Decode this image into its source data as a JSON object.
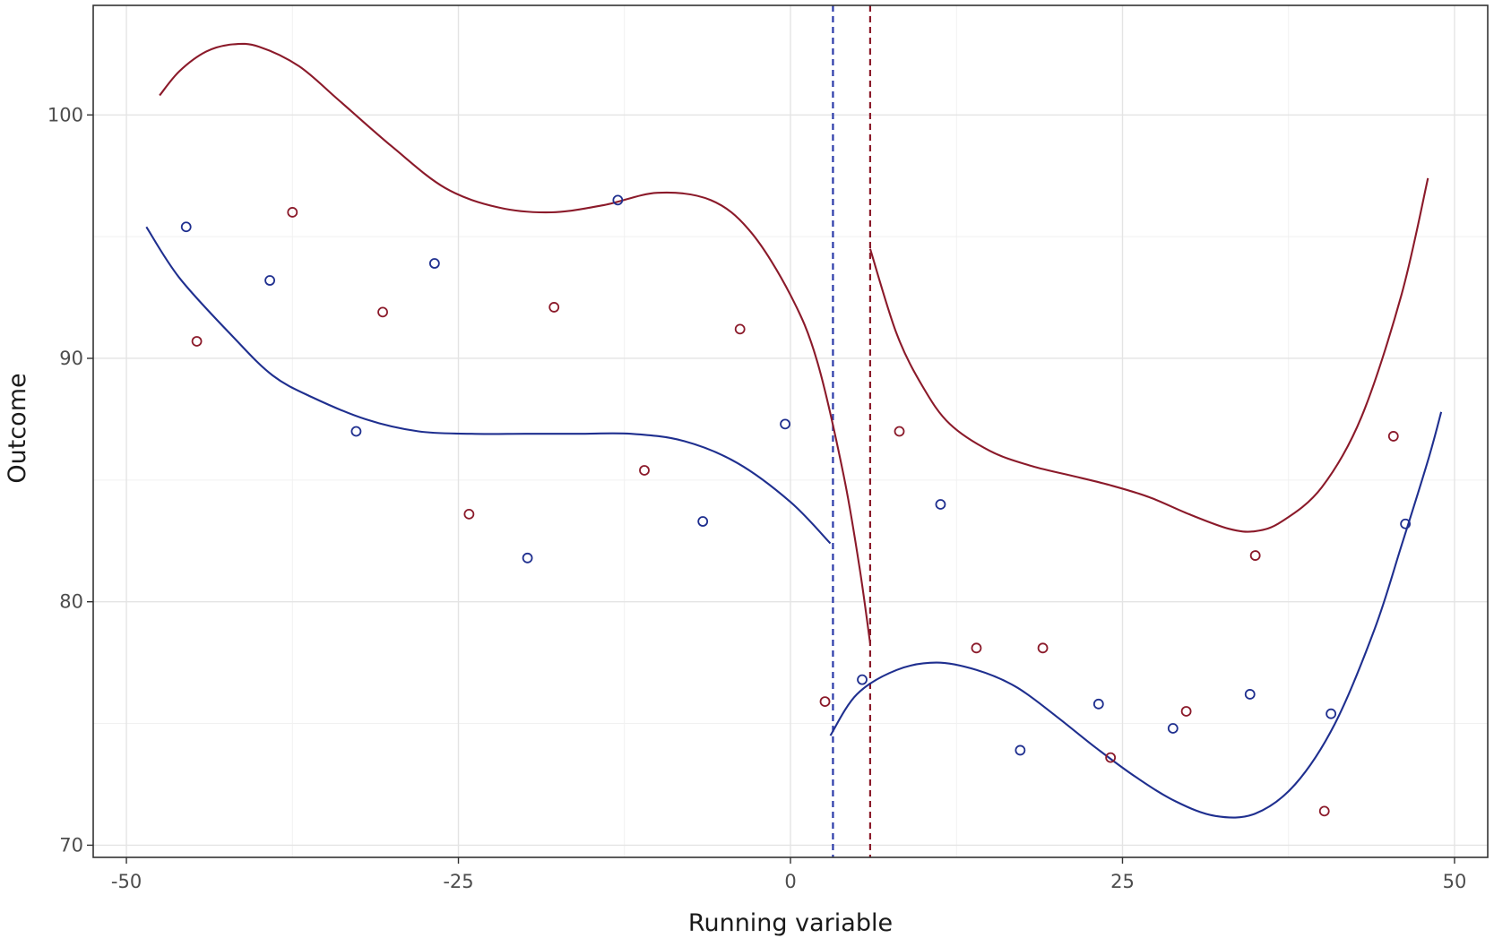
{
  "chart_data": {
    "type": "scatter",
    "xlabel": "Running variable",
    "ylabel": "Outcome",
    "xlim": [
      -52.5,
      52.5
    ],
    "ylim": [
      69.5,
      104.5
    ],
    "x_ticks": [
      -50,
      -25,
      0,
      25,
      50
    ],
    "x_tick_labels": [
      "-50",
      "-25",
      "0",
      "25",
      "50"
    ],
    "y_ticks": [
      70,
      80,
      90,
      100
    ],
    "y_tick_labels": [
      "70",
      "80",
      "90",
      "100"
    ],
    "grid": true,
    "legend": "none",
    "colors": {
      "blue": "#1f2f8f",
      "red": "#8b1a2a"
    },
    "cutoffs": [
      {
        "x": 3.2,
        "color": "#2b3aa8",
        "style": "dashed"
      },
      {
        "x": 6.0,
        "color": "#8b1a2a",
        "style": "dashed"
      }
    ],
    "series": [
      {
        "color": "#1f2f8f",
        "points": [
          [
            -45.5,
            95.4
          ],
          [
            -39.2,
            93.2
          ],
          [
            -32.7,
            87.0
          ],
          [
            -26.8,
            93.9
          ],
          [
            -19.8,
            81.8
          ],
          [
            -13.0,
            96.5
          ],
          [
            -6.6,
            83.3
          ],
          [
            -0.4,
            87.3
          ],
          [
            5.4,
            76.8
          ],
          [
            11.3,
            84.0
          ],
          [
            17.3,
            73.9
          ],
          [
            23.2,
            75.8
          ],
          [
            28.8,
            74.8
          ],
          [
            34.6,
            76.2
          ],
          [
            40.7,
            75.4
          ],
          [
            46.3,
            83.2
          ]
        ],
        "fit_left": [
          [
            -48.5,
            95.4
          ],
          [
            -46,
            93.3
          ],
          [
            -42,
            90.9
          ],
          [
            -39,
            89.3
          ],
          [
            -36,
            88.4
          ],
          [
            -32,
            87.5
          ],
          [
            -28,
            87.0
          ],
          [
            -24,
            86.9
          ],
          [
            -20,
            86.9
          ],
          [
            -16,
            86.9
          ],
          [
            -12,
            86.9
          ],
          [
            -8,
            86.6
          ],
          [
            -4,
            85.7
          ],
          [
            0,
            84.1
          ],
          [
            3,
            82.4
          ]
        ],
        "fit_right": [
          [
            3,
            74.5
          ],
          [
            5,
            76.2
          ],
          [
            8,
            77.2
          ],
          [
            11,
            77.5
          ],
          [
            14,
            77.2
          ],
          [
            17,
            76.5
          ],
          [
            20,
            75.3
          ],
          [
            23,
            74.0
          ],
          [
            26,
            72.8
          ],
          [
            29,
            71.8
          ],
          [
            32,
            71.2
          ],
          [
            35,
            71.3
          ],
          [
            38,
            72.5
          ],
          [
            41,
            75.0
          ],
          [
            44,
            78.9
          ],
          [
            46,
            82.3
          ],
          [
            48,
            85.8
          ],
          [
            49,
            87.8
          ]
        ]
      },
      {
        "color": "#8b1a2a",
        "points": [
          [
            -44.7,
            90.7
          ],
          [
            -37.5,
            96.0
          ],
          [
            -30.7,
            91.9
          ],
          [
            -24.2,
            83.6
          ],
          [
            -17.8,
            92.1
          ],
          [
            -11.0,
            85.4
          ],
          [
            -3.8,
            91.2
          ],
          [
            2.6,
            75.9
          ],
          [
            8.2,
            87.0
          ],
          [
            14.0,
            78.1
          ],
          [
            19.0,
            78.1
          ],
          [
            24.1,
            73.6
          ],
          [
            29.8,
            75.5
          ],
          [
            35.0,
            81.9
          ],
          [
            40.2,
            71.4
          ],
          [
            45.4,
            86.8
          ]
        ],
        "fit_left": [
          [
            -47.5,
            100.8
          ],
          [
            -46,
            101.8
          ],
          [
            -44,
            102.6
          ],
          [
            -42,
            102.9
          ],
          [
            -40,
            102.8
          ],
          [
            -37,
            102.0
          ],
          [
            -34,
            100.6
          ],
          [
            -30,
            98.7
          ],
          [
            -26,
            97.0
          ],
          [
            -22,
            96.2
          ],
          [
            -18,
            96.0
          ],
          [
            -14,
            96.3
          ],
          [
            -10,
            96.8
          ],
          [
            -6,
            96.5
          ],
          [
            -3,
            95.2
          ],
          [
            0,
            92.6
          ],
          [
            2,
            89.9
          ],
          [
            4,
            85.2
          ],
          [
            5.2,
            81.4
          ],
          [
            6,
            78.3
          ]
        ],
        "fit_right": [
          [
            6,
            94.5
          ],
          [
            8,
            91.0
          ],
          [
            10,
            88.8
          ],
          [
            12,
            87.3
          ],
          [
            15,
            86.2
          ],
          [
            18,
            85.6
          ],
          [
            21,
            85.2
          ],
          [
            24,
            84.8
          ],
          [
            27,
            84.3
          ],
          [
            30,
            83.6
          ],
          [
            33,
            83.0
          ],
          [
            35,
            82.9
          ],
          [
            37,
            83.3
          ],
          [
            40,
            84.7
          ],
          [
            43,
            87.6
          ],
          [
            46,
            92.6
          ],
          [
            48,
            97.4
          ]
        ]
      }
    ]
  }
}
